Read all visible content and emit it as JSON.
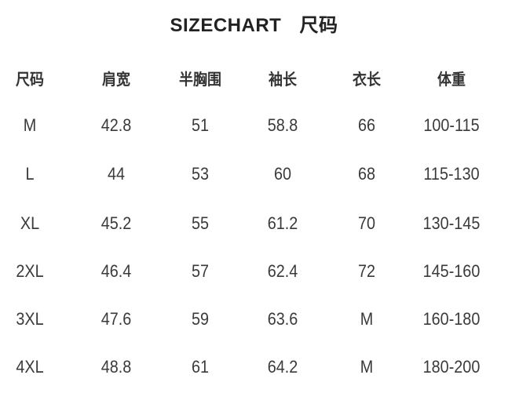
{
  "title": {
    "en": "SIZECHART",
    "zh": "尺码"
  },
  "table": {
    "headers": [
      "尺码",
      "肩宽",
      "半胸围",
      "袖长",
      "衣长",
      "体重"
    ],
    "rows": [
      [
        "M",
        "42.8",
        "51",
        "58.8",
        "66",
        "100-115"
      ],
      [
        "L",
        "44",
        "53",
        "60",
        "68",
        "115-130"
      ],
      [
        "XL",
        "45.2",
        "55",
        "61.2",
        "70",
        "130-145"
      ],
      [
        "2XL",
        "46.4",
        "57",
        "62.4",
        "72",
        "145-160"
      ],
      [
        "3XL",
        "47.6",
        "59",
        "63.6",
        "M",
        "160-180"
      ],
      [
        "4XL",
        "48.8",
        "61",
        "64.2",
        "M",
        "180-200"
      ]
    ]
  }
}
